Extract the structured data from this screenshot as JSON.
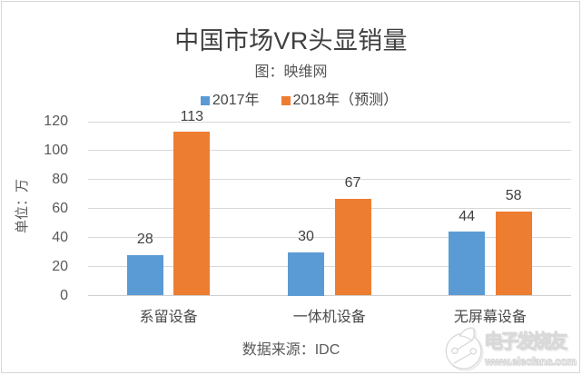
{
  "chart_data": {
    "type": "bar",
    "title": "中国市场VR头显销量",
    "subtitle": "图：映维网",
    "ylabel": "单位：万",
    "xlabel": "",
    "source_note": "数据来源：IDC",
    "categories": [
      "系留设备",
      "一体机设备",
      "无屏幕设备"
    ],
    "series": [
      {
        "name": "2017年",
        "color": "#5b9bd5",
        "values": [
          28,
          30,
          44
        ]
      },
      {
        "name": "2018年（预测）",
        "color": "#ed7d31",
        "values": [
          113,
          67,
          58
        ]
      }
    ],
    "ylim": [
      0,
      120
    ],
    "yticks": [
      0,
      20,
      40,
      60,
      80,
      100,
      120
    ],
    "grid": true,
    "legend_position": "top-center",
    "colors": {
      "series1": "#5b9bd5",
      "series2": "#ed7d31",
      "gridline": "#d9d9d9",
      "axis_line": "#cfcfcf",
      "frame_border": "#d7d7d7",
      "title_text": "#3f3f3f",
      "label_text": "#595959",
      "background": "#ffffff"
    }
  },
  "watermark": {
    "brand": "电子发烧友",
    "url_text": "www.elecfans.com",
    "logo": "elecfans-circuit-logo"
  }
}
